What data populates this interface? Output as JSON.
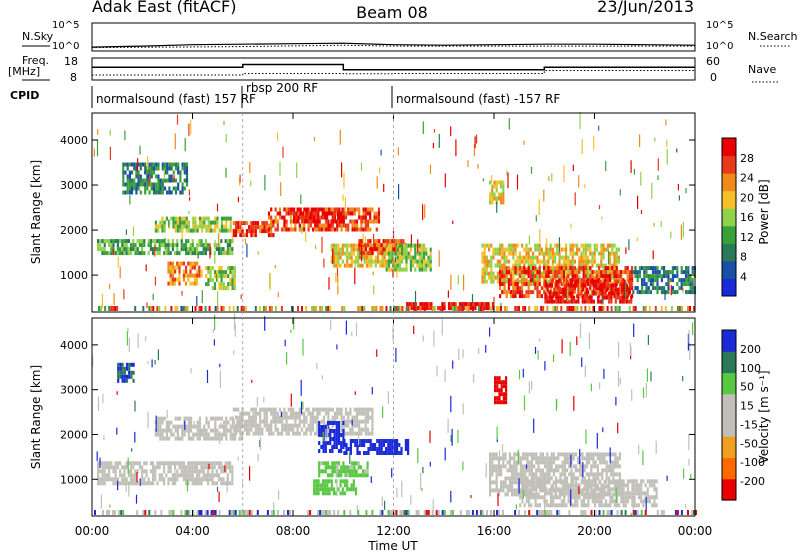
{
  "header": {
    "station": "Adak East (fitACF)",
    "beam": "Beam 08",
    "date": "23/Jun/2013"
  },
  "labels": {
    "nsky": "N.Sky",
    "nsearch": "N.Search",
    "freq_top": "Freq.",
    "freq_unit": "[MHz]",
    "nave": "Nave",
    "cpid": "CPID",
    "slant_range": "Slant Range [km]",
    "time_axis": "Time UT",
    "power_label": "Power [dB]",
    "velocity_label": "Velocity [m s⁻¹]"
  },
  "ticks": {
    "noise_left": [
      "10^5",
      "10^0"
    ],
    "noise_right": [
      "10^5",
      "10^0"
    ],
    "freq_left": [
      "18",
      "8"
    ],
    "freq_right": [
      "60",
      "0"
    ],
    "range": [
      "4000",
      "3000",
      "2000",
      "1000"
    ],
    "time": [
      "00:00",
      "04:00",
      "08:00",
      "12:00",
      "16:00",
      "20:00",
      "00:00"
    ],
    "power": [
      "28",
      "24",
      "20",
      "16",
      "12",
      "8",
      "4"
    ],
    "velocity": [
      "200",
      "100",
      "50",
      "15",
      "-15",
      "-50",
      "-100",
      "-200"
    ]
  },
  "cpid_segments": [
    {
      "label": "normalsound (fast) 157 RF",
      "start_h": 0,
      "end_h": 6
    },
    {
      "label": "rbsp 200 RF",
      "start_h": 6,
      "end_h": 12
    },
    {
      "label": "normalsound (fast) -157 RF",
      "start_h": 12,
      "end_h": 24
    }
  ],
  "colors": {
    "power_scale": [
      "#1a2ad9",
      "#1a4fa8",
      "#2a7a5a",
      "#3aa03a",
      "#8fd24a",
      "#f5c02a",
      "#f08a1a",
      "#e83a1a",
      "#e80000"
    ],
    "velocity_scale": [
      "#e80000",
      "#ff6a00",
      "#f0a020",
      "#c0c0b8",
      "#c0c0b8",
      "#58c842",
      "#2a7a5a",
      "#1a2ad9"
    ],
    "ground_scatter": "#c0c0b8"
  },
  "chart_data": [
    {
      "type": "line",
      "title": "N.Sky / N.Search",
      "x_unit": "hours UT",
      "xlim": [
        0,
        24
      ],
      "ylim_log10": [
        0,
        5
      ],
      "series": [
        {
          "name": "N.Sky",
          "x": [
            0,
            2,
            4,
            6,
            8,
            10,
            12,
            14,
            16,
            18,
            20,
            22,
            24
          ],
          "y_log10": [
            0.4,
            0.6,
            0.9,
            1.0,
            1.1,
            1.2,
            0.9,
            0.8,
            0.9,
            1.0,
            1.0,
            0.9,
            0.8
          ]
        },
        {
          "name": "N.Search",
          "x": [
            0,
            6,
            10,
            12,
            18,
            24
          ],
          "y_log10": [
            0.3,
            0.5,
            0.8,
            0.6,
            0.6,
            0.6
          ]
        }
      ]
    },
    {
      "type": "line",
      "title": "Freq. / Nave",
      "x_unit": "hours UT",
      "xlim": [
        0,
        24
      ],
      "ylim_freq_mhz": [
        8,
        18
      ],
      "ylim_nave": [
        0,
        60
      ],
      "series": [
        {
          "name": "Freq.",
          "x": [
            0,
            6,
            6,
            10,
            10,
            18,
            18,
            24
          ],
          "y": [
            14,
            14,
            15.5,
            15.5,
            12.6,
            12.6,
            14,
            14
          ]
        },
        {
          "name": "Nave",
          "x": [
            0,
            6,
            6,
            10,
            10,
            12,
            12,
            18,
            18,
            24
          ],
          "y": [
            10,
            10,
            15,
            15,
            14,
            14,
            15,
            15,
            25,
            25
          ]
        }
      ]
    },
    {
      "type": "heatmap",
      "title": "Power [dB]",
      "xlabel": "Time UT",
      "ylabel": "Slant Range [km]",
      "xlim_hours": [
        0,
        24
      ],
      "ylim_km": [
        180,
        4600
      ],
      "colorbar_range": [
        0,
        30
      ],
      "regions": [
        {
          "t": [
            0.2,
            5.6
          ],
          "r": [
            1500,
            1800
          ],
          "level": 3
        },
        {
          "t": [
            1.2,
            3.8
          ],
          "r": [
            2800,
            3500
          ],
          "level": 2
        },
        {
          "t": [
            2.5,
            5.5
          ],
          "r": [
            2000,
            2300
          ],
          "level": 4
        },
        {
          "t": [
            3.0,
            4.4
          ],
          "r": [
            800,
            1300
          ],
          "level": 6
        },
        {
          "t": [
            4.5,
            5.7
          ],
          "r": [
            700,
            1200
          ],
          "level": 4
        },
        {
          "t": [
            5.6,
            7.2
          ],
          "r": [
            1900,
            2200
          ],
          "level": 7
        },
        {
          "t": [
            7.0,
            11.4
          ],
          "r": [
            2000,
            2500
          ],
          "level": 7
        },
        {
          "t": [
            8.0,
            10.0
          ],
          "r": [
            2200,
            2500
          ],
          "level": 8
        },
        {
          "t": [
            9.5,
            12.2
          ],
          "r": [
            1200,
            1700
          ],
          "level": 5
        },
        {
          "t": [
            10.6,
            12.5
          ],
          "r": [
            1450,
            1800
          ],
          "level": 7
        },
        {
          "t": [
            11.6,
            13.5
          ],
          "r": [
            1100,
            1700
          ],
          "level": 4
        },
        {
          "t": [
            15.5,
            21.0
          ],
          "r": [
            900,
            1700
          ],
          "level": 5
        },
        {
          "t": [
            16.2,
            21.5
          ],
          "r": [
            500,
            1200
          ],
          "level": 7
        },
        {
          "t": [
            18.0,
            21.5
          ],
          "r": [
            400,
            900
          ],
          "level": 8
        },
        {
          "t": [
            21.5,
            24.0
          ],
          "r": [
            600,
            1200
          ],
          "level": 2
        },
        {
          "t": [
            15.8,
            16.4
          ],
          "r": [
            2600,
            3100
          ],
          "level": 5
        },
        {
          "t": [
            12.5,
            16.0
          ],
          "r": [
            250,
            400
          ],
          "level": 8
        }
      ]
    },
    {
      "type": "heatmap",
      "title": "Velocity [m s⁻¹]",
      "xlabel": "Time UT",
      "ylabel": "Slant Range [km]",
      "xlim_hours": [
        0,
        24
      ],
      "ylim_km": [
        180,
        4600
      ],
      "colorbar_range": [
        -250,
        250
      ],
      "regions": [
        {
          "t": [
            0.2,
            5.6
          ],
          "r": [
            900,
            1400
          ],
          "vel": 0
        },
        {
          "t": [
            2.5,
            6.0
          ],
          "r": [
            1900,
            2400
          ],
          "vel": 0
        },
        {
          "t": [
            5.6,
            11.2
          ],
          "r": [
            2000,
            2600
          ],
          "vel": 0
        },
        {
          "t": [
            9.0,
            10.0
          ],
          "r": [
            1600,
            2300
          ],
          "vel": 200
        },
        {
          "t": [
            10.0,
            12.6
          ],
          "r": [
            1600,
            1900
          ],
          "vel": 200
        },
        {
          "t": [
            9.0,
            11.0
          ],
          "r": [
            1100,
            1400
          ],
          "vel": 40
        },
        {
          "t": [
            8.8,
            10.5
          ],
          "r": [
            700,
            1000
          ],
          "vel": 50
        },
        {
          "t": [
            15.8,
            21.0
          ],
          "r": [
            700,
            1600
          ],
          "vel": 0
        },
        {
          "t": [
            17.0,
            22.5
          ],
          "r": [
            400,
            1000
          ],
          "vel": 0
        },
        {
          "t": [
            16.0,
            16.5
          ],
          "r": [
            2700,
            3300
          ],
          "vel": -200
        },
        {
          "t": [
            1.0,
            1.7
          ],
          "r": [
            3200,
            3600
          ],
          "vel": 150
        }
      ]
    }
  ]
}
